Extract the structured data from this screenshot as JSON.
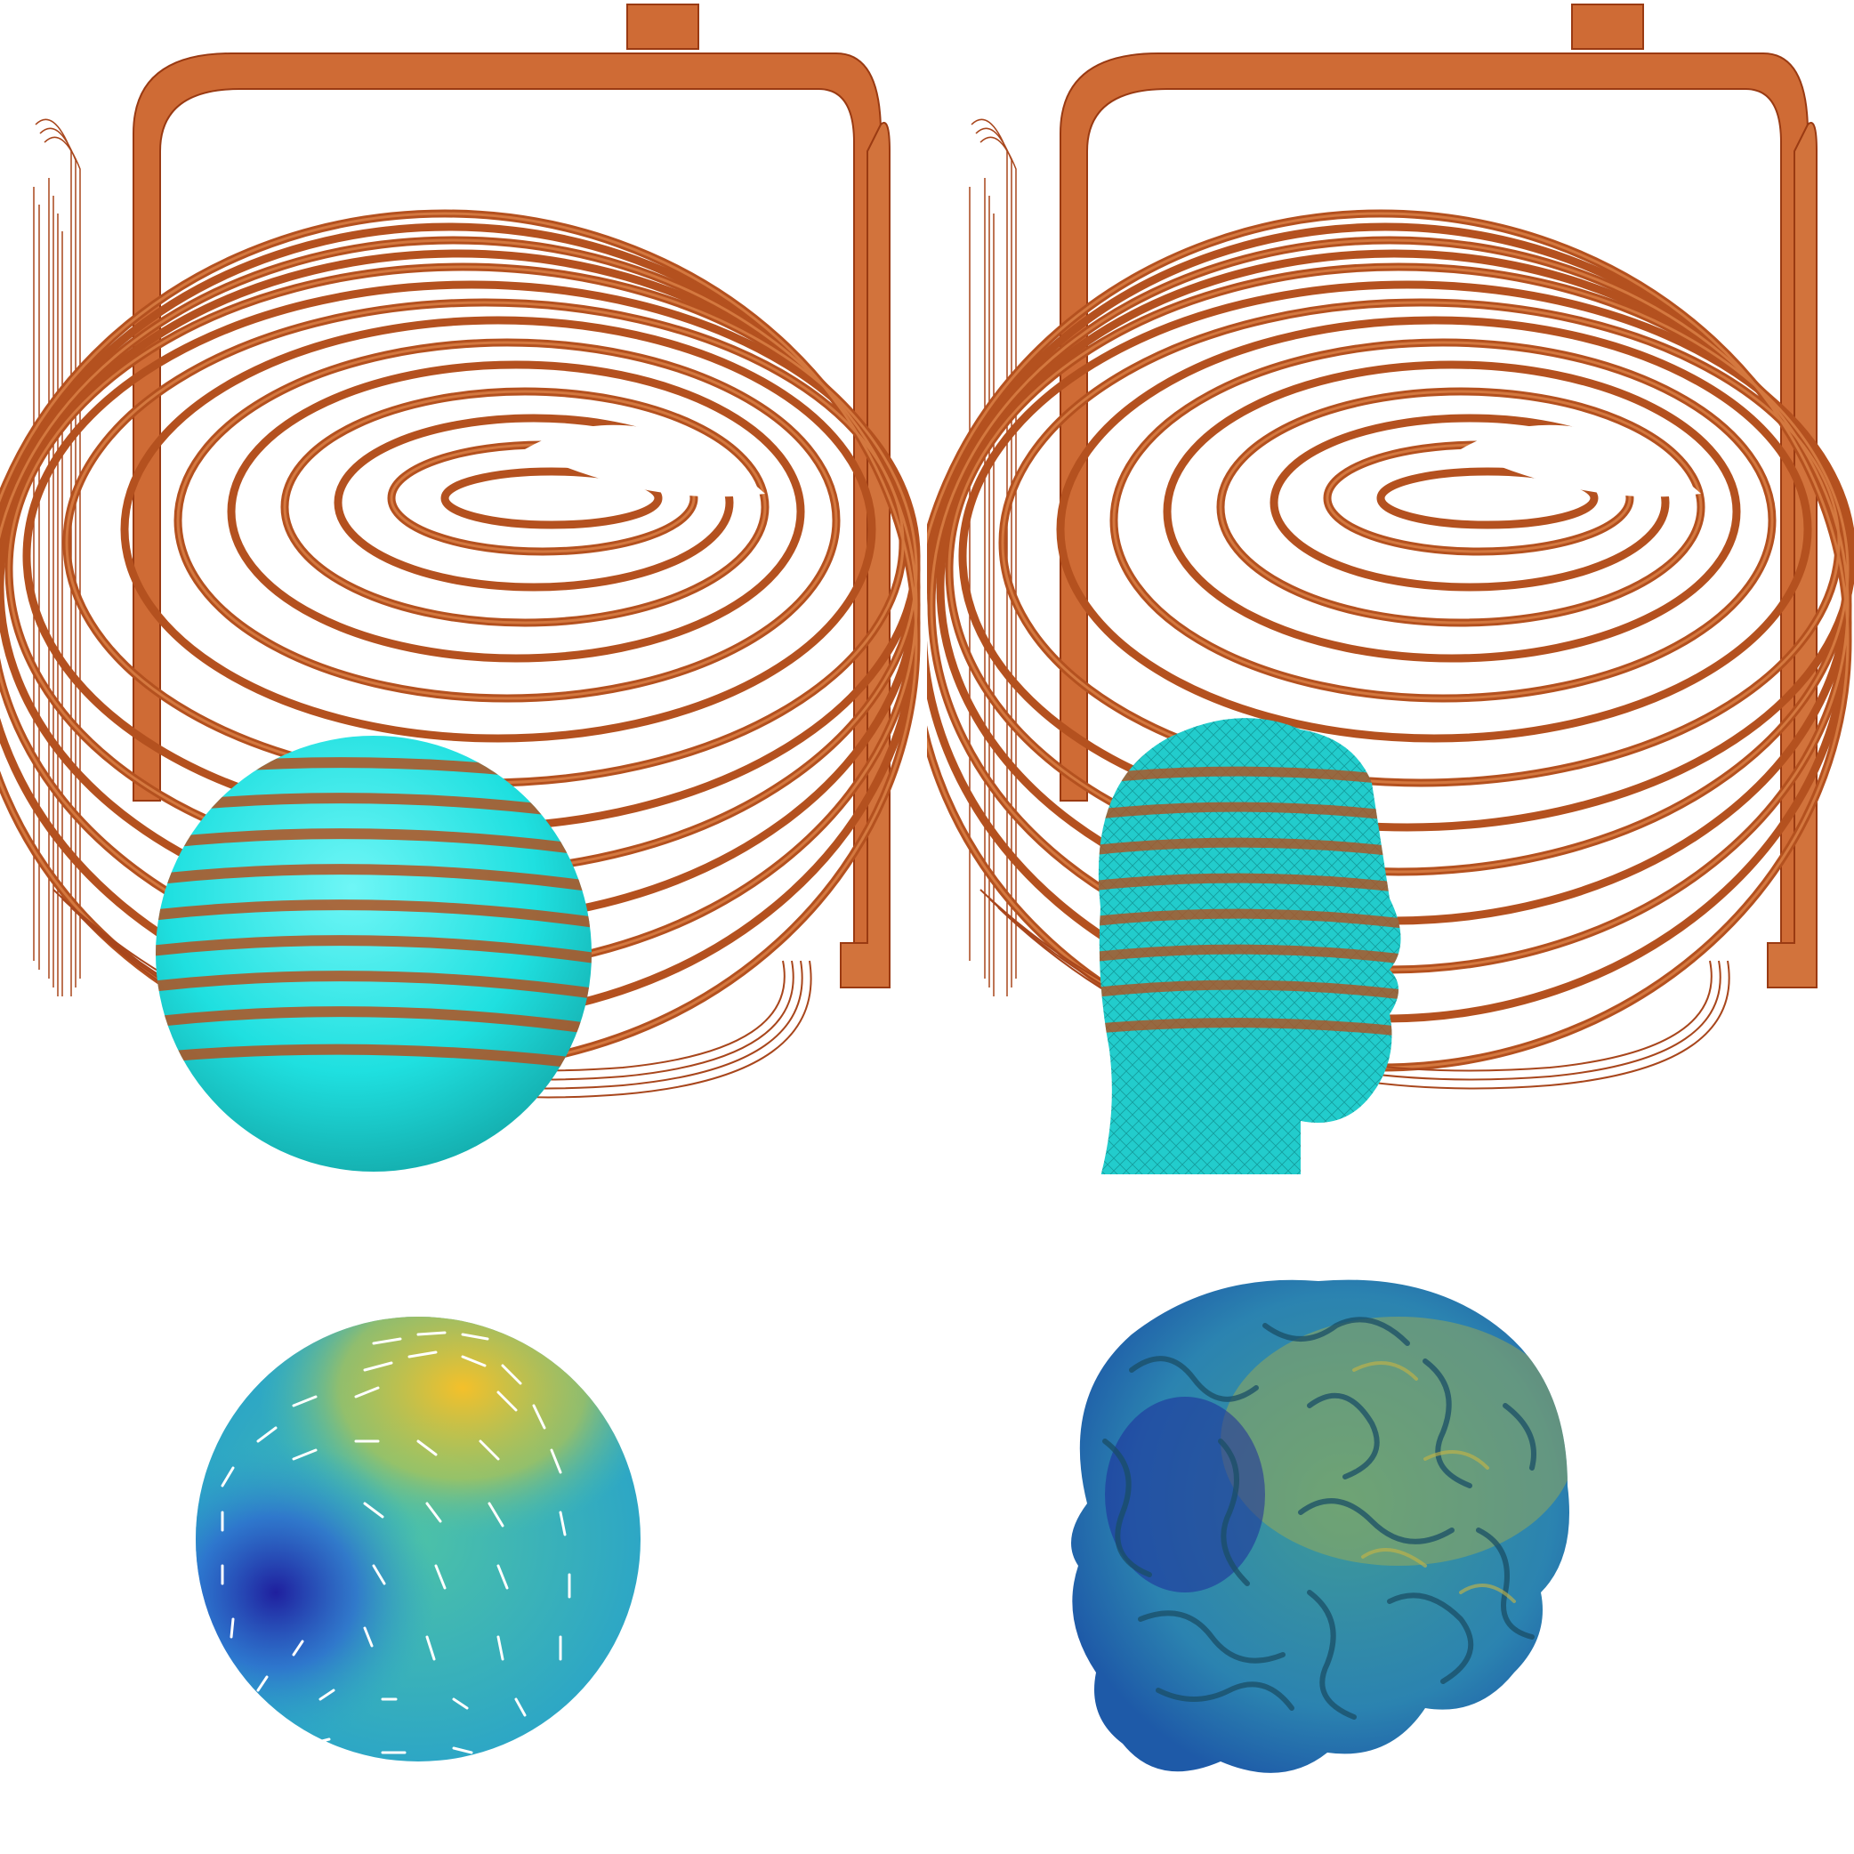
{
  "figure": {
    "panels": [
      {
        "id": "coil-sphere",
        "description_type": "3d-render"
      },
      {
        "id": "coil-head",
        "description_type": "3d-render"
      },
      {
        "id": "sphere-field",
        "description_type": "3d-render"
      },
      {
        "id": "brain-field",
        "description_type": "3d-render"
      }
    ]
  },
  "colors": {
    "coil": "#cf6b35",
    "coil_dark": "#9a3a12",
    "sphere": "#1fe0e0",
    "head_mesh": "#22cccc",
    "field_low": "#2a2fb0",
    "field_mid": "#29a8c9",
    "field_high": "#f2c330",
    "arrows": "#ffffff"
  }
}
